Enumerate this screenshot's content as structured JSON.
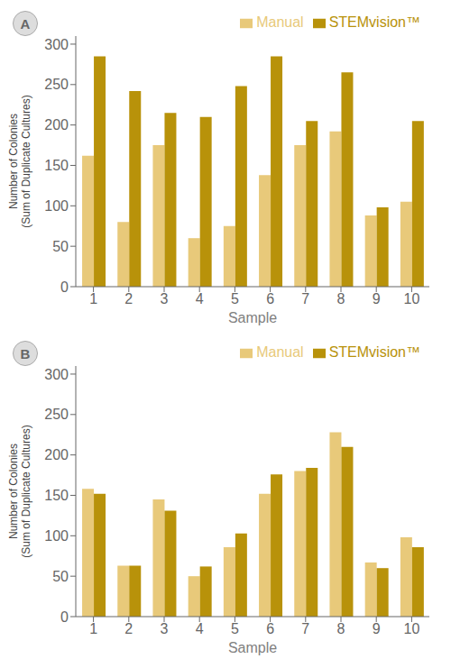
{
  "chart_data": [
    {
      "type": "bar",
      "title": "A",
      "categories": [
        "1",
        "2",
        "3",
        "4",
        "5",
        "6",
        "7",
        "8",
        "9",
        "10"
      ],
      "series": [
        {
          "name": "Manual",
          "color": "#E8C97A",
          "values": [
            162,
            80,
            175,
            60,
            75,
            138,
            175,
            192,
            88,
            105
          ]
        },
        {
          "name": "STEMvision™",
          "color": "#B8920A",
          "values": [
            285,
            242,
            215,
            210,
            248,
            285,
            205,
            265,
            98,
            205
          ]
        }
      ],
      "xlabel": "Sample",
      "ylabel": "Number of Colonies\n(Sum of Duplicate Cultures)",
      "ylim": [
        0,
        310
      ],
      "yticks": [
        0,
        50,
        100,
        150,
        200,
        250,
        300
      ],
      "legend": "upper right",
      "grid": false
    },
    {
      "type": "bar",
      "title": "B",
      "categories": [
        "1",
        "2",
        "3",
        "4",
        "5",
        "6",
        "7",
        "8",
        "9",
        "10"
      ],
      "series": [
        {
          "name": "Manual",
          "color": "#E8C97A",
          "values": [
            158,
            63,
            145,
            50,
            86,
            152,
            180,
            228,
            67,
            98
          ]
        },
        {
          "name": "STEMvision™",
          "color": "#B8920A",
          "values": [
            152,
            63,
            131,
            62,
            103,
            176,
            184,
            210,
            60,
            86
          ]
        }
      ],
      "xlabel": "Sample",
      "ylabel": "Number of Colonies\n(Sum of Duplicate Cultures)",
      "ylim": [
        0,
        310
      ],
      "yticks": [
        0,
        50,
        100,
        150,
        200,
        250,
        300
      ],
      "legend": "upper right",
      "grid": false
    }
  ]
}
